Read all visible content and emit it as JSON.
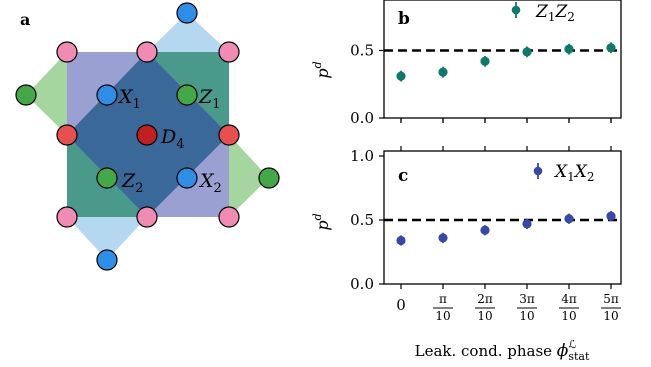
{
  "panels": {
    "a": {
      "label": "a"
    },
    "b": {
      "label": "b"
    },
    "c": {
      "label": "c"
    }
  },
  "lattice": {
    "labels": {
      "x1": {
        "main": "X",
        "sub": "1"
      },
      "z1": {
        "main": "Z",
        "sub": "1"
      },
      "d4": {
        "main": "D",
        "sub": "4"
      },
      "z2": {
        "main": "Z",
        "sub": "2"
      },
      "x2": {
        "main": "X",
        "sub": "2"
      }
    },
    "colors": {
      "x_plaquette": "#9aa0d2",
      "z_plaquette": "#4a9a8c",
      "center_diamond": "#3a6898",
      "boundary_x": "#b4d8f0",
      "boundary_z": "#a6d6a0",
      "data_qubit": "#f08cb4",
      "x_ancilla": "#2e8ee6",
      "z_ancilla": "#44a848",
      "leak_qubit_boundary": "#e85050",
      "leak_center": "#c02020"
    }
  },
  "chart_data": [
    {
      "type": "scatter",
      "panel": "b",
      "legend": {
        "main": "Z",
        "sub1": "1",
        "main2": "Z",
        "sub2": "2"
      },
      "legend_position": "top-right",
      "ylabel": {
        "main": "p",
        "sup": "d"
      },
      "ylim": [
        0.0,
        1.0
      ],
      "yticks": [
        "0.0",
        "0.5"
      ],
      "color": "#0f7a6a",
      "x": [
        0,
        1,
        2,
        3,
        4,
        5
      ],
      "values": [
        0.31,
        0.34,
        0.42,
        0.49,
        0.51,
        0.52
      ],
      "err": [
        0.04,
        0.04,
        0.04,
        0.04,
        0.04,
        0.04
      ],
      "reference_line": 0.5
    },
    {
      "type": "scatter",
      "panel": "c",
      "legend": {
        "main": "X",
        "sub1": "1",
        "main2": "X",
        "sub2": "2"
      },
      "legend_position": "top-right",
      "ylabel": {
        "main": "p",
        "sup": "d"
      },
      "ylim": [
        0.0,
        1.0
      ],
      "yticks": [
        "0.0",
        "0.5",
        "1.0"
      ],
      "color": "#3848a8",
      "x": [
        0,
        1,
        2,
        3,
        4,
        5
      ],
      "values": [
        0.34,
        0.36,
        0.42,
        0.47,
        0.51,
        0.53
      ],
      "err": [
        0.04,
        0.04,
        0.04,
        0.04,
        0.04,
        0.04
      ],
      "reference_line": 0.5,
      "xtick_labels": [
        {
          "num": "0",
          "den": ""
        },
        {
          "num": "π",
          "den": "10"
        },
        {
          "num": "2π",
          "den": "10"
        },
        {
          "num": "3π",
          "den": "10"
        },
        {
          "num": "4π",
          "den": "10"
        },
        {
          "num": "5π",
          "den": "10"
        }
      ],
      "xlabel": {
        "text": "Leak. cond. phase ",
        "sym": "ϕ",
        "sup": "ℒ",
        "sub": "stat"
      }
    }
  ]
}
